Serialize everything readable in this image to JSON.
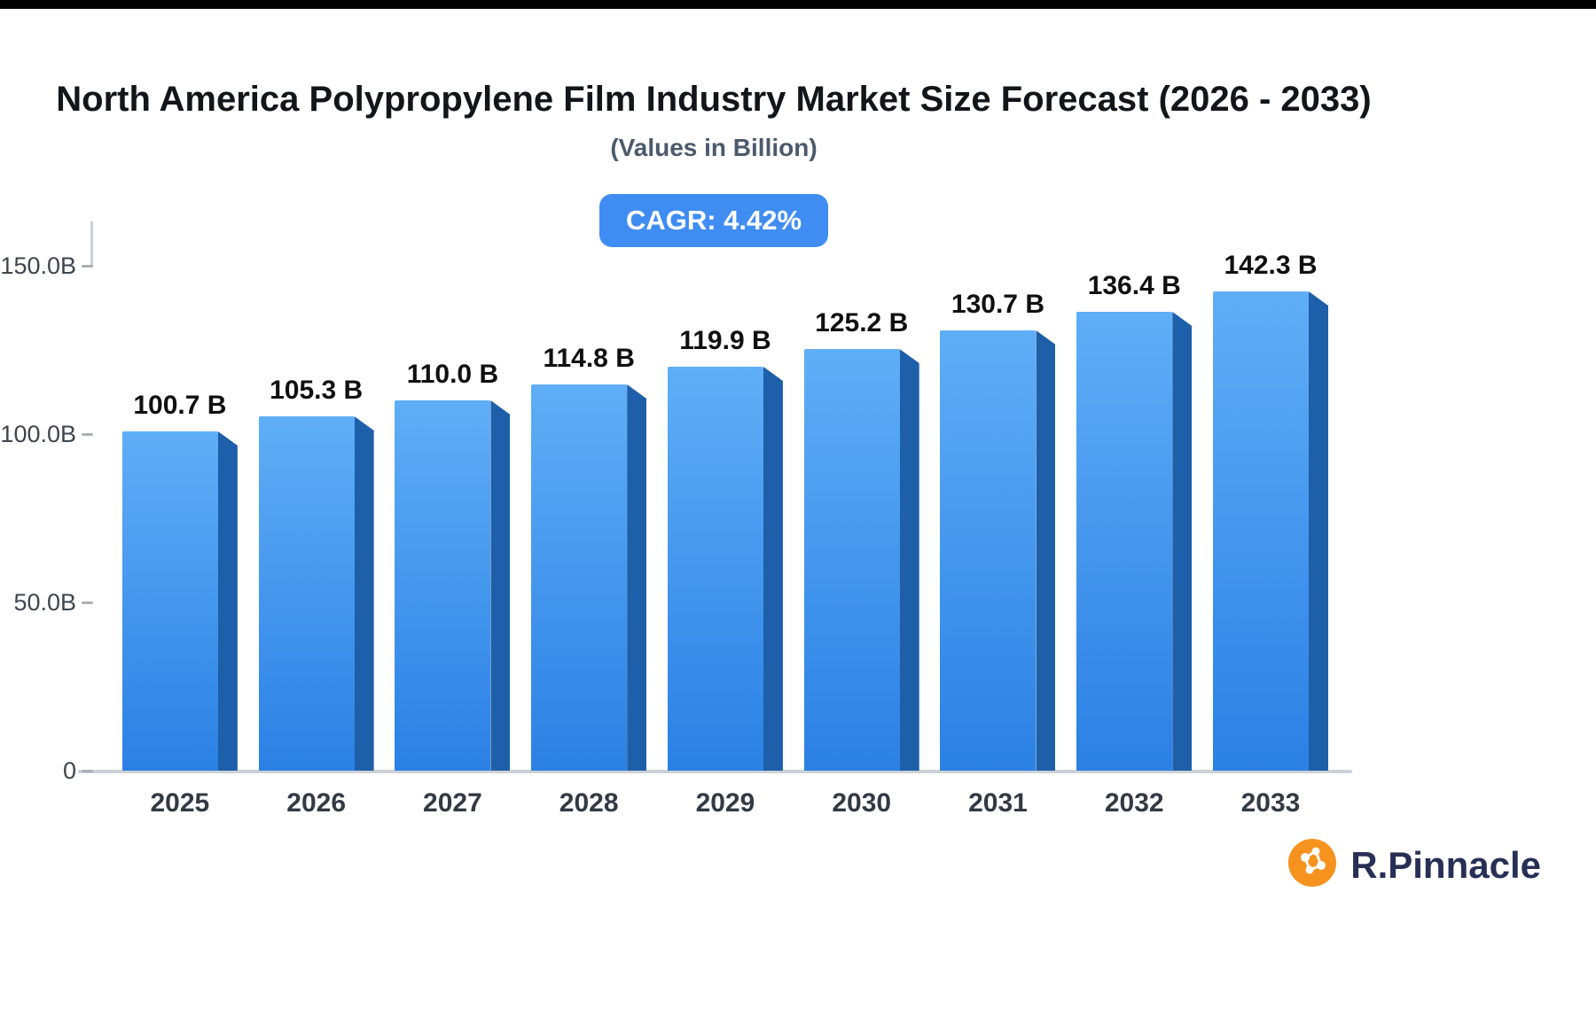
{
  "page": {
    "background": "#ffffff",
    "top_strip_color": "#000000"
  },
  "header": {
    "title": "North America Polypropylene Film Industry Market Size Forecast (2026 - 2033)",
    "subtitle": "(Values in Billion)"
  },
  "badge": {
    "label": "CAGR: 4.42%",
    "color": "#3f8df2"
  },
  "chart_data": {
    "type": "bar",
    "title": "North America Polypropylene Film Industry Market Size Forecast (2026 - 2033)",
    "subtitle": "(Values in Billion)",
    "annotation": "CAGR: 4.42%",
    "unit": "Billion",
    "categories": [
      "2025",
      "2026",
      "2027",
      "2028",
      "2029",
      "2030",
      "2031",
      "2032",
      "2033"
    ],
    "values": [
      100.7,
      105.3,
      110.0,
      114.8,
      119.9,
      125.2,
      130.7,
      136.4,
      142.3
    ],
    "value_labels": [
      "100.7 B",
      "105.3 B",
      "110.0 B",
      "114.8 B",
      "119.9 B",
      "125.2 B",
      "130.7 B",
      "136.4 B",
      "142.3 B"
    ],
    "ylim": [
      0,
      150
    ],
    "yticks": [
      {
        "value": 0,
        "label": "0"
      },
      {
        "value": 50,
        "label": "50.0B"
      },
      {
        "value": 100,
        "label": "100.0B"
      },
      {
        "value": 150,
        "label": "150.0B"
      }
    ],
    "grid": "off",
    "legend": "none",
    "bar_colors": {
      "face_top": "#5faef7",
      "face_bottom": "#2b80e4",
      "side": "#1d5fa9"
    }
  },
  "branding": {
    "logo_text": "R.Pinnacle",
    "logo_icon": "network-icon",
    "icon_color": "#F6921E",
    "text_color": "#272f55"
  }
}
